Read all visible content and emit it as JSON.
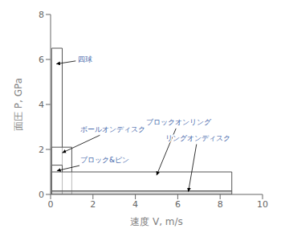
{
  "chart_data": {
    "type": "rectangles",
    "xlabel": "速度  V, m/s",
    "ylabel": "面圧  P, GPa",
    "xlim": [
      0,
      10
    ],
    "ylim": [
      0,
      8
    ],
    "xticks": [
      0,
      2,
      4,
      6,
      8,
      10
    ],
    "yticks": [
      0,
      2,
      4,
      6,
      8
    ],
    "grid": false,
    "series": [
      {
        "name": "四球",
        "x0": 0.05,
        "y0": 0.0,
        "width": 0.5,
        "height": 6.5,
        "color": "white"
      },
      {
        "name": "ボールオンディスク",
        "x0": 0.05,
        "y0": 0.0,
        "width": 0.95,
        "height": 2.1,
        "color": "white"
      },
      {
        "name": "ブロック&ピン",
        "x0": 0.05,
        "y0": 0.0,
        "width": 0.5,
        "height": 1.3,
        "color": "white"
      },
      {
        "name": "ブロックオンリング",
        "x0": 0.05,
        "y0": 0.15,
        "width": 8.5,
        "height": 0.85,
        "color": "white"
      },
      {
        "name": "リングオンディスク",
        "x0": 0.05,
        "y0": 0.0,
        "width": 8.5,
        "height": 0.15,
        "color": "#cccccc"
      }
    ],
    "annotations": [
      {
        "text": "四球",
        "xy": [
          0.27,
          5.8
        ],
        "xytext": [
          1.3,
          6.0
        ],
        "color": "#4466aa"
      },
      {
        "text": "ボールオンディスク",
        "xy": [
          0.55,
          1.85
        ],
        "xytext": [
          1.4,
          2.9
        ],
        "color": "#4466aa"
      },
      {
        "text": "ブロック&ピン",
        "xy": [
          0.3,
          1.05
        ],
        "xytext": [
          1.4,
          1.55
        ],
        "color": "#4466aa"
      },
      {
        "text": "ブロックオンリング",
        "xy": [
          5.0,
          0.85
        ],
        "xytext": [
          4.5,
          3.2
        ],
        "color": "#4466aa"
      },
      {
        "text": "リングオンディスク",
        "xy": [
          6.5,
          0.12
        ],
        "xytext": [
          5.4,
          2.5
        ],
        "color": "#4466aa"
      }
    ]
  }
}
